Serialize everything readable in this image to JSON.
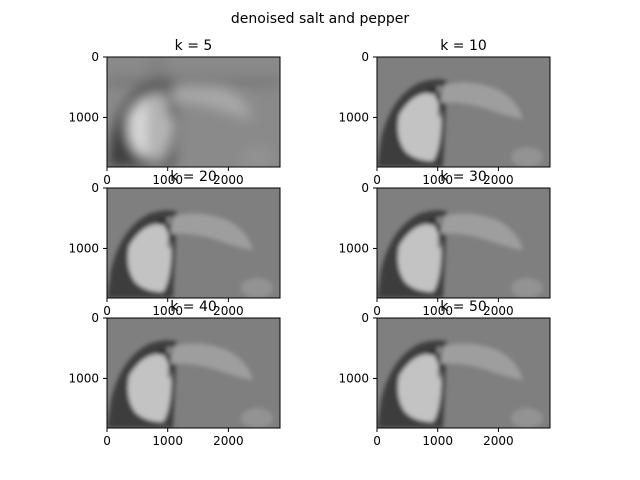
{
  "figure": {
    "suptitle": "denoised salt and pepper"
  },
  "chart_data": [
    {
      "type": "image",
      "title": "k = 5",
      "k": 5,
      "xticks": [
        "0",
        "1000",
        "2000"
      ],
      "yticks": [
        "0",
        "1000"
      ],
      "xlim": [
        0,
        2850
      ],
      "ylim": [
        1820,
        0
      ],
      "colormap": "gray"
    },
    {
      "type": "image",
      "title": "k = 10",
      "k": 10,
      "xticks": [
        "0",
        "1000",
        "2000"
      ],
      "yticks": [
        "0",
        "1000"
      ],
      "xlim": [
        0,
        2850
      ],
      "ylim": [
        1820,
        0
      ],
      "colormap": "gray"
    },
    {
      "type": "image",
      "title": "k = 20",
      "k": 20,
      "xticks": [
        "0",
        "1000",
        "2000"
      ],
      "yticks": [
        "0",
        "1000"
      ],
      "xlim": [
        0,
        2850
      ],
      "ylim": [
        1820,
        0
      ],
      "colormap": "gray"
    },
    {
      "type": "image",
      "title": "k = 30",
      "k": 30,
      "xticks": [
        "0",
        "1000",
        "2000"
      ],
      "yticks": [
        "0",
        "1000"
      ],
      "xlim": [
        0,
        2850
      ],
      "ylim": [
        1820,
        0
      ],
      "colormap": "gray"
    },
    {
      "type": "image",
      "title": "k = 40",
      "k": 40,
      "xticks": [
        "0",
        "1000",
        "2000"
      ],
      "yticks": [
        "0",
        "1000"
      ],
      "xlim": [
        0,
        2850
      ],
      "ylim": [
        1820,
        0
      ],
      "colormap": "gray"
    },
    {
      "type": "image",
      "title": "k = 50",
      "k": 50,
      "xticks": [
        "0",
        "1000",
        "2000"
      ],
      "yticks": [
        "0",
        "1000"
      ],
      "xlim": [
        0,
        2850
      ],
      "ylim": [
        1820,
        0
      ],
      "colormap": "gray"
    }
  ]
}
